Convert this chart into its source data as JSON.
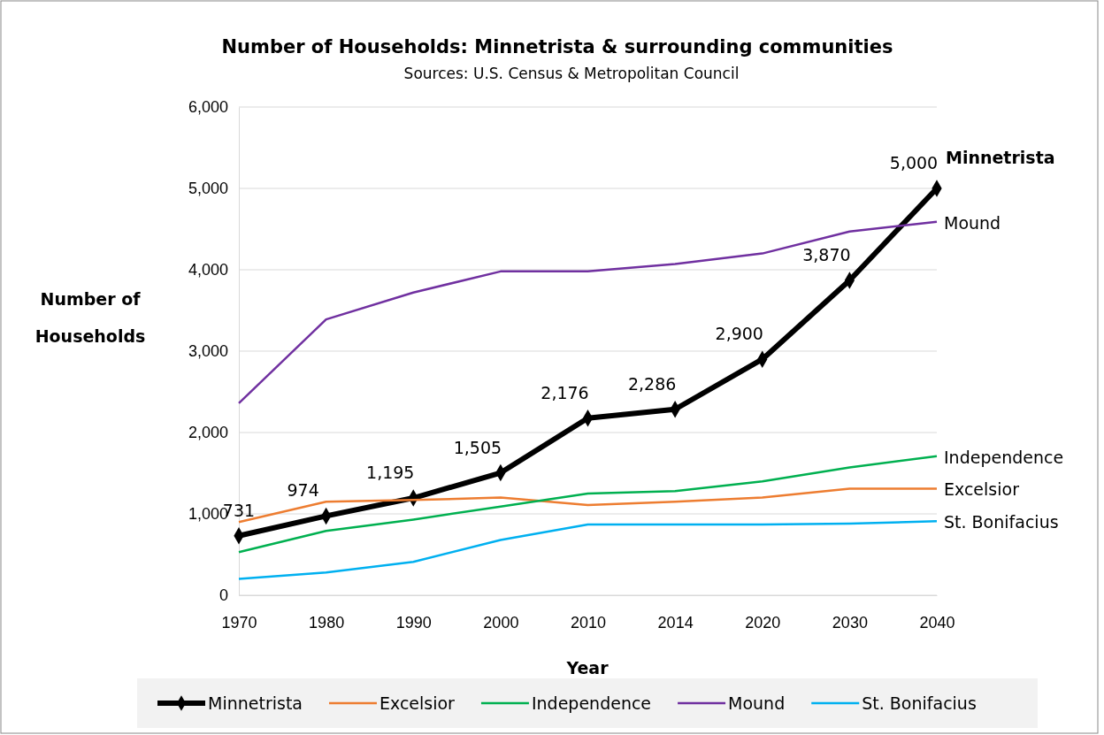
{
  "chart_data": {
    "type": "line",
    "title": "Number of Households: Minnetrista & surrounding communities",
    "subtitle": "Sources: U.S. Census & Metropolitan Council",
    "xlabel": "Year",
    "ylabel": "Number of Households",
    "categories": [
      "1970",
      "1980",
      "1990",
      "2000",
      "2010",
      "2014",
      "2020",
      "2030",
      "2040"
    ],
    "ylim": [
      0,
      6000
    ],
    "yticks": [
      {
        "value": 0,
        "label": "0"
      },
      {
        "value": 1000,
        "label": "1,000"
      },
      {
        "value": 2000,
        "label": "2,000"
      },
      {
        "value": 3000,
        "label": "3,000"
      },
      {
        "value": 4000,
        "label": "4,000"
      },
      {
        "value": 5000,
        "label": "5,000"
      },
      {
        "value": 6000,
        "label": "6,000"
      }
    ],
    "grid": "y",
    "legend": "bottom",
    "series": [
      {
        "name": "Minnetrista",
        "color": "#000000",
        "marker": "diamond",
        "values": [
          731,
          974,
          1195,
          1505,
          2176,
          2286,
          2900,
          3870,
          5000
        ],
        "value_labels": [
          "731",
          "974",
          "1,195",
          "1,505",
          "2,176",
          "2,286",
          "2,900",
          "3,870",
          "5,000"
        ]
      },
      {
        "name": "Excelsior",
        "color": "#ed7d31",
        "values": [
          900,
          1150,
          1170,
          1200,
          1110,
          1150,
          1200,
          1310,
          1310
        ]
      },
      {
        "name": "Independence",
        "color": "#00b050",
        "values": [
          530,
          790,
          930,
          1090,
          1250,
          1280,
          1400,
          1570,
          1710
        ]
      },
      {
        "name": "Mound",
        "color": "#7030a0",
        "values": [
          2360,
          3390,
          3720,
          3980,
          3980,
          4070,
          4200,
          4470,
          4590
        ]
      },
      {
        "name": "St. Bonifacius",
        "color": "#00b0f0",
        "values": [
          200,
          280,
          410,
          680,
          870,
          870,
          870,
          880,
          910
        ]
      }
    ]
  }
}
